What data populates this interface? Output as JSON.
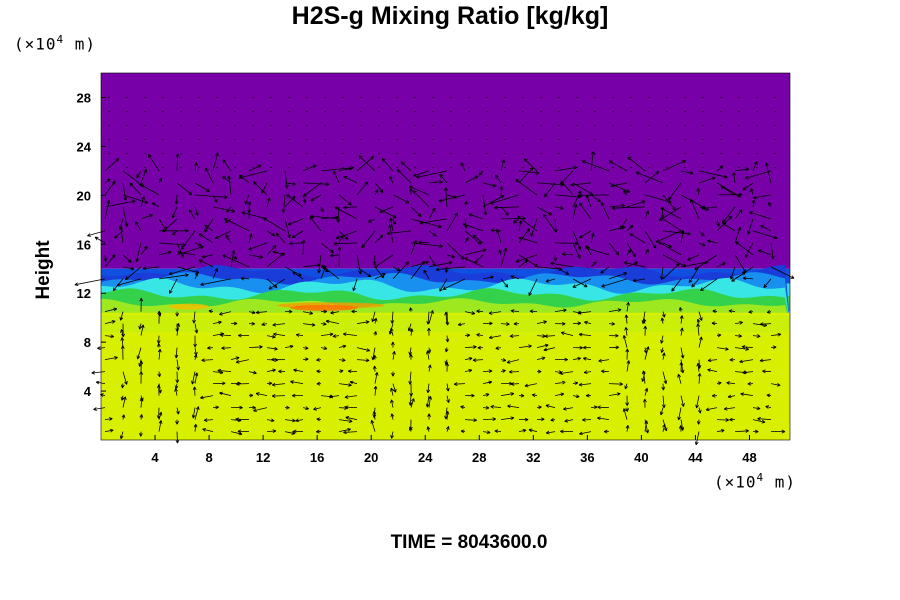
{
  "chart_data": {
    "type": "heatmap",
    "title": "H2S-g Mixing Ratio [kg/kg]",
    "ylabel": "Height",
    "xlabel": "",
    "x_unit": {
      "prefix": "(×10",
      "exp": "4",
      "suffix": " m)"
    },
    "y_unit": {
      "prefix": "(×10",
      "exp": "4",
      "suffix": " m)"
    },
    "xlim": [
      0,
      51
    ],
    "ylim": [
      0,
      30
    ],
    "x_ticks": [
      "4",
      "8",
      "12",
      "16",
      "20",
      "24",
      "28",
      "32",
      "36",
      "40",
      "44",
      "48"
    ],
    "y_ticks": [
      "4",
      "8",
      "12",
      "16",
      "20",
      "24",
      "28"
    ],
    "layers": [
      {
        "name": "upper",
        "from": 14,
        "to": 30,
        "color": "#7800a8"
      },
      {
        "name": "transition-blue",
        "from": 12.5,
        "to": 14,
        "color": "#1050e0"
      },
      {
        "name": "transition-cyan",
        "from": 11.8,
        "to": 12.8,
        "color": "#30e0e8"
      },
      {
        "name": "transition-green",
        "from": 10.5,
        "to": 11.8,
        "color": "#30d040"
      },
      {
        "name": "lower",
        "from": 0,
        "to": 10.5,
        "color": "#d8f000"
      }
    ],
    "vector_field": {
      "upper_range": [
        14,
        22
      ],
      "lower_range": [
        0,
        10.5
      ]
    }
  },
  "footer": {
    "label": "TIME = ",
    "value": "8043600.0"
  }
}
